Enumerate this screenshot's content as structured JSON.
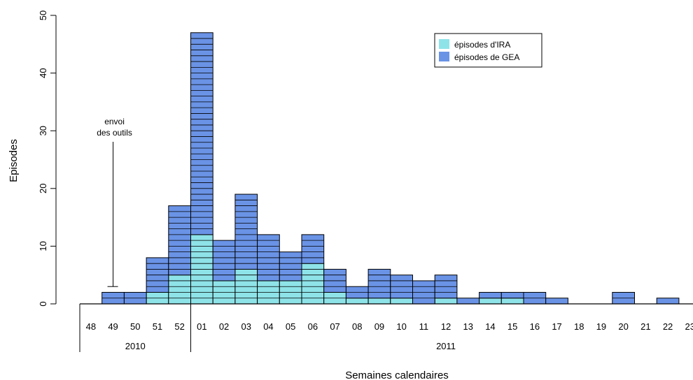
{
  "chart_data": {
    "type": "bar",
    "stacked": true,
    "cell_grid": true,
    "ylabel": "Episodes",
    "xlabel": "Semaines calendaires",
    "ylim": [
      0,
      50
    ],
    "yticks": [
      0,
      10,
      20,
      30,
      40,
      50
    ],
    "categories": [
      "48",
      "49",
      "50",
      "51",
      "52",
      "01",
      "02",
      "03",
      "04",
      "05",
      "06",
      "07",
      "08",
      "09",
      "10",
      "11",
      "12",
      "13",
      "14",
      "15",
      "16",
      "17",
      "18",
      "19",
      "20",
      "21",
      "22",
      "23"
    ],
    "years": [
      {
        "label": "2010",
        "first_week": "48",
        "last_week": "52"
      },
      {
        "label": "2011",
        "first_week": "01",
        "last_week": "23"
      }
    ],
    "series": [
      {
        "name": "épisodes d'IRA",
        "color": "#8ee3e8",
        "values": [
          0,
          0,
          0,
          2,
          5,
          12,
          4,
          6,
          4,
          4,
          7,
          2,
          1,
          1,
          1,
          0,
          1,
          0,
          1,
          1,
          0,
          0,
          0,
          0,
          0,
          0,
          0,
          0
        ]
      },
      {
        "name": "épisodes de GEA",
        "color": "#6a93e6",
        "values": [
          0,
          2,
          2,
          6,
          12,
          35,
          7,
          13,
          8,
          5,
          5,
          4,
          2,
          5,
          4,
          4,
          4,
          1,
          1,
          1,
          2,
          1,
          0,
          0,
          2,
          0,
          1,
          0
        ]
      }
    ],
    "legend": {
      "placement": "top-right"
    },
    "annotation": {
      "lines": [
        "envoi",
        "des outils"
      ],
      "week": "49"
    }
  }
}
